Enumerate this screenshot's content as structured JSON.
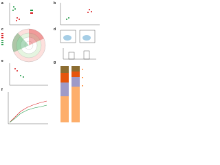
{
  "panels": [
    {
      "label": "a"
    },
    {
      "label": "b"
    },
    {
      "label": "c"
    },
    {
      "label": "d"
    },
    {
      "label": "e"
    },
    {
      "label": "f"
    },
    {
      "label": "g"
    }
  ]
}
